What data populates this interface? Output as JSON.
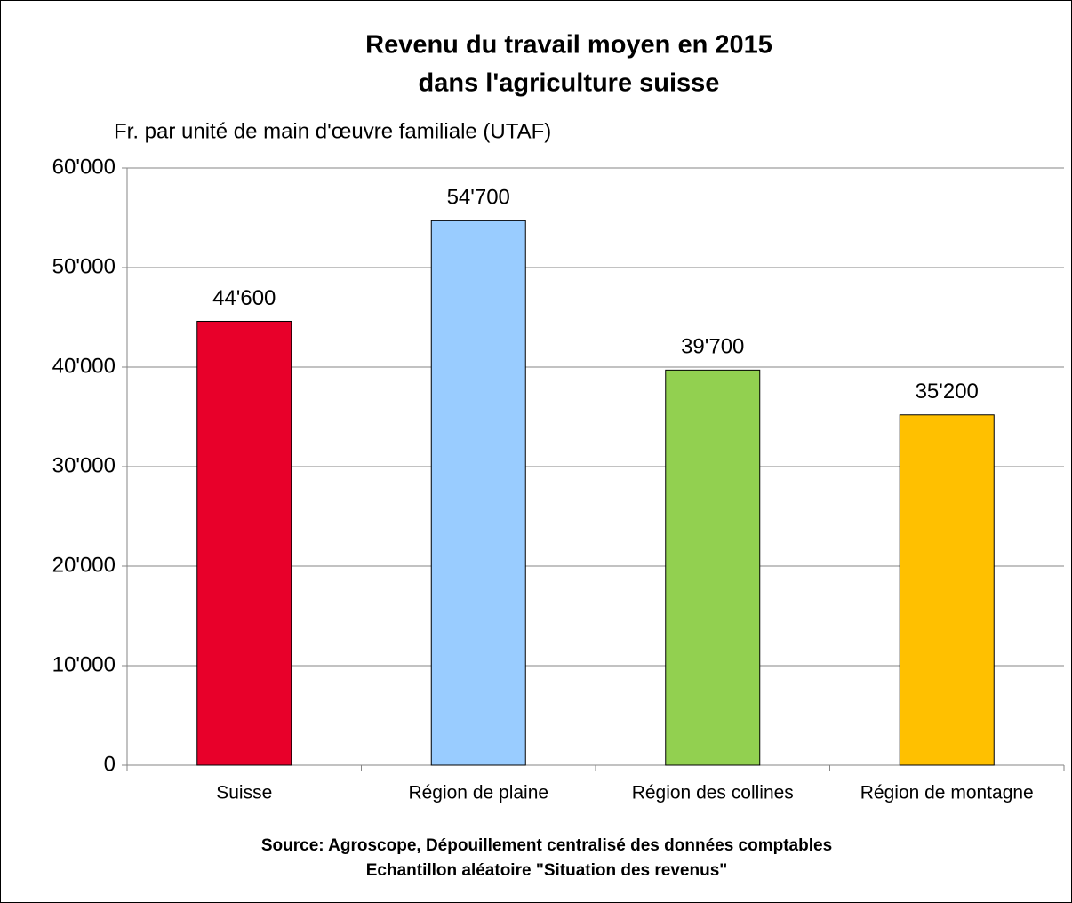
{
  "chart_data": {
    "type": "bar",
    "title": [
      "Revenu du travail moyen en 2015",
      "dans l'agriculture suisse"
    ],
    "ylabel": "Fr. par unité de main d'œuvre familiale (UTAF)",
    "categories": [
      "Suisse",
      "Région de plaine",
      "Région des collines",
      "Région de montagne"
    ],
    "values": [
      44600,
      54700,
      39700,
      35200
    ],
    "value_labels": [
      "44'600",
      "54'700",
      "39'700",
      "35'200"
    ],
    "colors": [
      "#e8002a",
      "#99ccff",
      "#92d050",
      "#ffc000"
    ],
    "ylim": [
      0,
      60000
    ],
    "yticks": [
      0,
      {
        "value": 10000,
        "label": "10'000"
      },
      {
        "value": 20000,
        "label": "20'000"
      },
      {
        "value": 30000,
        "label": "30'000"
      },
      {
        "value": 40000,
        "label": "40'000"
      },
      {
        "value": 50000,
        "label": "50'000"
      },
      {
        "value": 60000,
        "label": "60'000"
      }
    ],
    "grid": true,
    "source": [
      "Source: Agroscope, Dépouillement centralisé des données comptables",
      "Echantillon aléatoire \"Situation des revenus\""
    ]
  }
}
